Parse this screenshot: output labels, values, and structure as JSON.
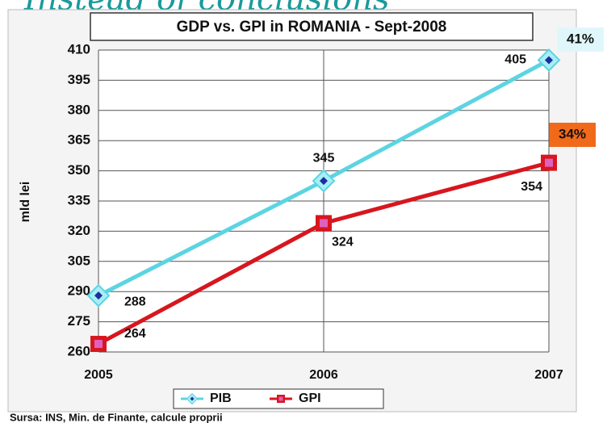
{
  "heading": "Instead of conclusions",
  "chart_data": {
    "type": "line",
    "title": "GDP vs. GPI in ROMANIA - Sept-2008",
    "ylabel": "mld lei",
    "categories": [
      "2005",
      "2006",
      "2007"
    ],
    "series": [
      {
        "name": "PIB",
        "color": "#5cd4e2",
        "values": [
          288,
          345,
          405
        ]
      },
      {
        "name": "GPI",
        "color": "#d7161e",
        "values": [
          264,
          324,
          354
        ]
      }
    ],
    "ylim": [
      260,
      410
    ],
    "yticks": [
      260,
      275,
      290,
      305,
      320,
      335,
      350,
      365,
      380,
      395,
      410
    ],
    "grid": true,
    "annotations": [
      "41%",
      "34%"
    ],
    "source": "Sursa: INS, Min. de Finante, calcule proprii"
  }
}
